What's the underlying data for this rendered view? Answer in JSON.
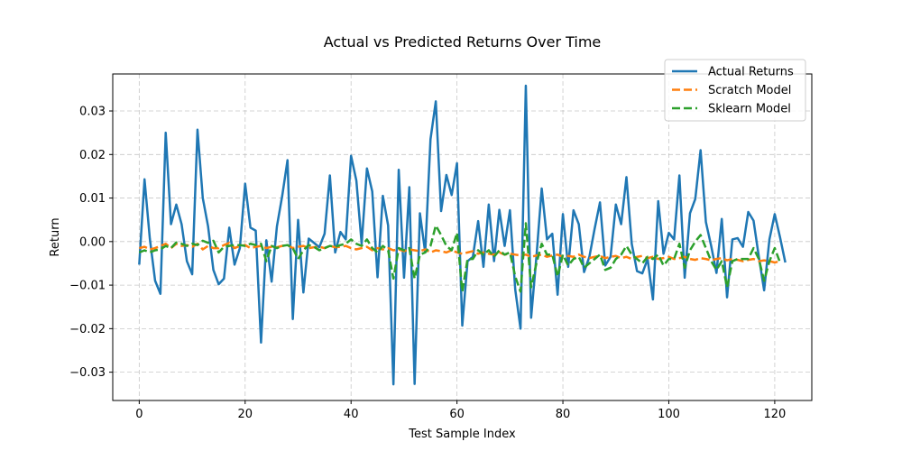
{
  "chart_data": {
    "type": "line",
    "title": "Actual vs Predicted Returns Over Time",
    "xlabel": "Test Sample Index",
    "ylabel": "Return",
    "xlim": [
      -5,
      127
    ],
    "ylim": [
      -0.0365,
      0.0385
    ],
    "xticks": [
      0,
      20,
      40,
      60,
      80,
      100,
      120
    ],
    "yticks": [
      -0.03,
      -0.02,
      -0.01,
      0.0,
      0.01,
      0.02,
      0.03
    ],
    "ytick_labels": [
      "−0.03",
      "−0.02",
      "−0.01",
      "0.00",
      "0.01",
      "0.02",
      "0.03"
    ],
    "grid": true,
    "legend_position": "top-right",
    "series": [
      {
        "name": "Actual Returns",
        "color": "#1f77b4",
        "style": "solid",
        "values": [
          -0.0053,
          0.0143,
          0.0007,
          -0.009,
          -0.012,
          0.025,
          0.004,
          0.0085,
          0.004,
          -0.0045,
          -0.0075,
          0.0257,
          0.01,
          0.0035,
          -0.0065,
          -0.0098,
          -0.0085,
          0.0032,
          -0.0053,
          -0.0015,
          0.0133,
          0.0032,
          0.0025,
          -0.0232,
          0.0003,
          -0.0092,
          0.0035,
          0.0105,
          0.0187,
          -0.0178,
          0.005,
          -0.0117,
          0.0007,
          -0.0003,
          -0.0013,
          0.0018,
          0.0152,
          -0.0025,
          0.0022,
          0.0005,
          0.0197,
          0.014,
          -0.0005,
          0.0168,
          0.0115,
          -0.0082,
          0.0105,
          0.0037,
          -0.0328,
          0.0165,
          -0.0083,
          0.0125,
          -0.0327,
          0.0065,
          -0.0025,
          0.0235,
          0.0322,
          0.007,
          0.0153,
          0.0107,
          0.018,
          -0.0193,
          -0.0045,
          -0.0035,
          0.0047,
          -0.0058,
          0.0085,
          -0.0045,
          0.0073,
          -0.001,
          0.0072,
          -0.011,
          -0.02,
          0.0358,
          -0.0175,
          -0.0035,
          0.0122,
          0.0005,
          0.0018,
          -0.0122,
          0.0063,
          -0.0058,
          0.0072,
          0.004,
          -0.007,
          -0.0035,
          0.003,
          0.009,
          -0.0055,
          -0.0035,
          0.0085,
          0.004,
          0.0148,
          -0.0005,
          -0.0068,
          -0.0073,
          -0.004,
          -0.0133,
          0.0093,
          -0.0028,
          0.002,
          0.0005,
          0.0152,
          -0.0083,
          0.0065,
          0.0098,
          0.021,
          0.0045,
          -0.001,
          -0.0072,
          0.0052,
          -0.0128,
          0.0005,
          0.0008,
          -0.0012,
          0.0068,
          0.0048,
          -0.0035,
          -0.0112,
          0.0005,
          0.0063,
          0.001,
          -0.0048
        ]
      },
      {
        "name": "Scratch Model",
        "color": "#ff7f0e",
        "style": "dashed",
        "values": [
          -0.0015,
          -0.0012,
          -0.0018,
          -0.0015,
          -0.001,
          -0.0005,
          -0.0015,
          -0.0005,
          -0.001,
          -0.0008,
          -0.0012,
          -0.0005,
          -0.0018,
          -0.001,
          -0.0015,
          -0.0015,
          -0.0008,
          -0.0003,
          -0.0015,
          -0.001,
          -0.0008,
          -0.0015,
          -0.0012,
          -0.001,
          -0.0015,
          -0.0012,
          -0.0013,
          -0.001,
          -0.0008,
          -0.0015,
          -0.0012,
          -0.001,
          -0.0015,
          -0.0013,
          -0.0012,
          -0.0015,
          -0.001,
          -0.0013,
          -0.0012,
          -0.001,
          -0.0015,
          -0.0018,
          -0.0015,
          -0.0012,
          -0.002,
          -0.0015,
          -0.0018,
          -0.0015,
          -0.002,
          -0.0018,
          -0.0022,
          -0.0018,
          -0.002,
          -0.0022,
          -0.0018,
          -0.0025,
          -0.002,
          -0.0022,
          -0.0025,
          -0.002,
          -0.0025,
          -0.0028,
          -0.0025,
          -0.0022,
          -0.0028,
          -0.0025,
          -0.0028,
          -0.003,
          -0.0025,
          -0.003,
          -0.0028,
          -0.003,
          -0.0032,
          -0.003,
          -0.0035,
          -0.0032,
          -0.003,
          -0.0035,
          -0.0032,
          -0.003,
          -0.0035,
          -0.0033,
          -0.0035,
          -0.003,
          -0.0035,
          -0.0038,
          -0.0035,
          -0.0033,
          -0.0038,
          -0.0035,
          -0.0033,
          -0.0038,
          -0.0035,
          -0.004,
          -0.0035,
          -0.0033,
          -0.0038,
          -0.0035,
          -0.004,
          -0.0038,
          -0.0035,
          -0.004,
          -0.0038,
          -0.0035,
          -0.004,
          -0.0042,
          -0.0038,
          -0.004,
          -0.0043,
          -0.004,
          -0.0038,
          -0.0043,
          -0.004,
          -0.0042,
          -0.0045,
          -0.0042,
          -0.004,
          -0.0045,
          -0.0043,
          -0.0045,
          -0.0048,
          -0.0045
        ]
      },
      {
        "name": "Sklearn Model",
        "color": "#2ca02c",
        "style": "dashed",
        "values": [
          -0.0025,
          -0.002,
          -0.0025,
          -0.002,
          -0.0018,
          -0.001,
          -0.0015,
          -0.0002,
          -0.0005,
          -0.001,
          -0.0005,
          -0.0008,
          0.0002,
          -0.0003,
          0.0002,
          -0.0025,
          -0.0012,
          -0.001,
          -0.0008,
          -0.0008,
          -0.001,
          -0.0005,
          -0.0008,
          -0.0005,
          -0.0045,
          -0.001,
          -0.0015,
          -0.001,
          -0.0008,
          -0.0015,
          -0.004,
          -0.002,
          -0.0008,
          -0.0012,
          -0.002,
          -0.0015,
          -0.001,
          -0.0012,
          -0.0008,
          -0.0005,
          0.0005,
          -0.0005,
          -0.001,
          0.0005,
          -0.0015,
          -0.0025,
          -0.001,
          -0.002,
          -0.0085,
          -0.0015,
          -0.002,
          -0.0015,
          -0.0085,
          -0.003,
          -0.0025,
          -0.001,
          0.0037,
          0.0015,
          -0.001,
          -0.002,
          0.002,
          -0.0115,
          -0.004,
          -0.004,
          -0.002,
          -0.003,
          -0.002,
          -0.0035,
          -0.002,
          -0.003,
          -0.0025,
          -0.008,
          -0.0115,
          0.0042,
          -0.0105,
          -0.005,
          -0.0005,
          -0.003,
          -0.003,
          -0.008,
          -0.003,
          -0.0055,
          -0.004,
          -0.0035,
          -0.006,
          -0.005,
          -0.004,
          -0.003,
          -0.0065,
          -0.006,
          -0.004,
          -0.003,
          -0.001,
          -0.003,
          -0.004,
          -0.005,
          -0.0035,
          -0.004,
          -0.003,
          -0.0055,
          -0.004,
          -0.004,
          -0.0005,
          -0.006,
          -0.002,
          0.0,
          0.0015,
          -0.0015,
          -0.0045,
          -0.0065,
          -0.0045,
          -0.0105,
          -0.0045,
          -0.004,
          -0.004,
          -0.004,
          -0.0015,
          -0.004,
          -0.009,
          -0.0045,
          -0.0015,
          -0.0048
        ]
      }
    ]
  }
}
